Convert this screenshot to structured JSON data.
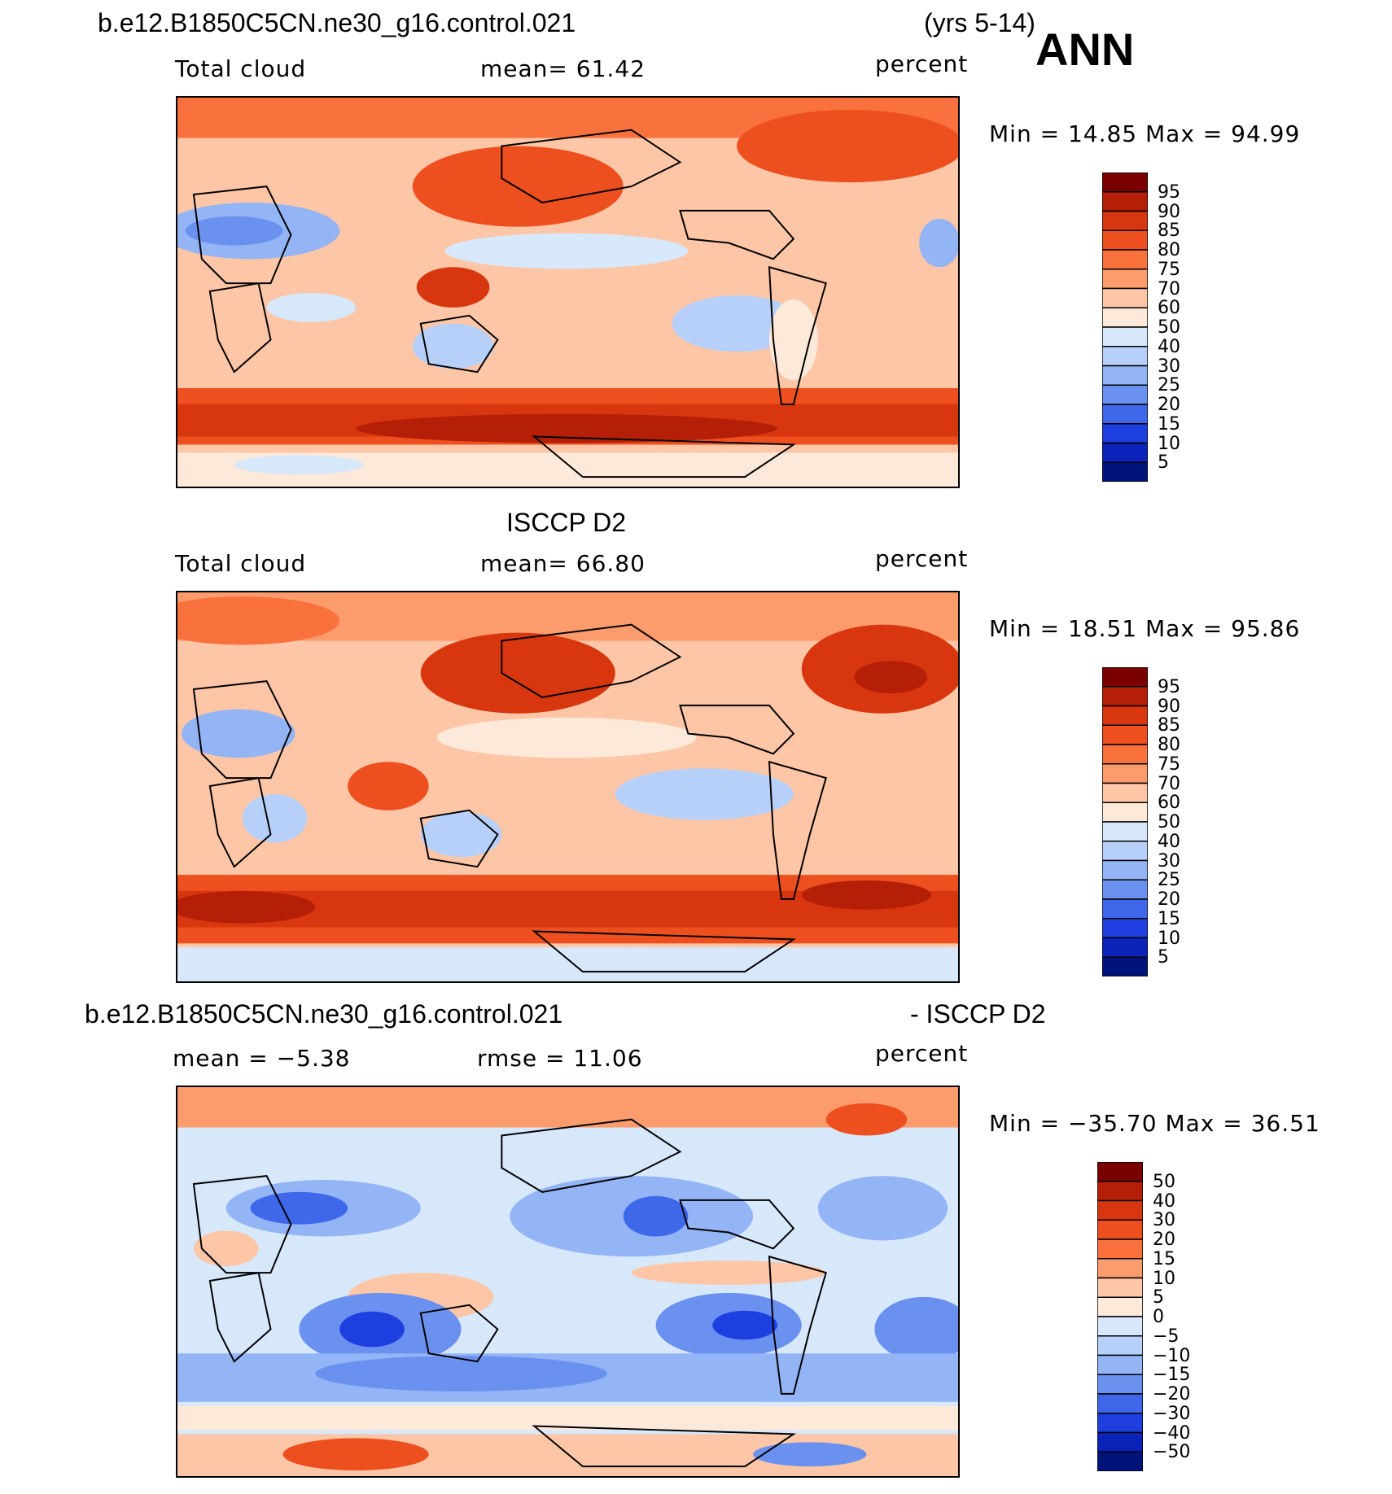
{
  "header": {
    "case_name": "b.e12.B1850C5CN.ne30_g16.control.021",
    "years": "(yrs 5-14)",
    "season": "ANN"
  },
  "panels": [
    {
      "title": "",
      "left_label": "Total cloud",
      "center_label": "mean=   61.42",
      "units": "percent",
      "minmax": "Min =   14.85  Max =   94.99",
      "colorbar": {
        "levels": [
          "95",
          "90",
          "85",
          "80",
          "75",
          "70",
          "60",
          "50",
          "40",
          "30",
          "25",
          "20",
          "15",
          "10",
          "5"
        ],
        "colors": [
          "#7a0000",
          "#b51f07",
          "#d8360f",
          "#ee4f1e",
          "#f9723d",
          "#fc9b6c",
          "#fdc6a6",
          "#fde9d9",
          "#d7e8fb",
          "#b7d0f9",
          "#93b4f5",
          "#6b91f0",
          "#3f67ea",
          "#1d3fe0",
          "#0b23b8",
          "#00137a"
        ]
      }
    },
    {
      "title": "ISCCP D2",
      "left_label": "Total cloud",
      "center_label": "mean=   66.80",
      "units": "percent",
      "minmax": "Min =   18.51  Max =   95.86",
      "colorbar": {
        "levels": [
          "95",
          "90",
          "85",
          "80",
          "75",
          "70",
          "60",
          "50",
          "40",
          "30",
          "25",
          "20",
          "15",
          "10",
          "5"
        ],
        "colors": [
          "#7a0000",
          "#b51f07",
          "#d8360f",
          "#ee4f1e",
          "#f9723d",
          "#fc9b6c",
          "#fdc6a6",
          "#fde9d9",
          "#d7e8fb",
          "#b7d0f9",
          "#93b4f5",
          "#6b91f0",
          "#3f67ea",
          "#1d3fe0",
          "#0b23b8",
          "#00137a"
        ]
      }
    },
    {
      "title_left": "b.e12.B1850C5CN.ne30_g16.control.021",
      "title_right": "- ISCCP D2",
      "left_label": "mean =   −5.38",
      "center_label": "rmse =    11.06",
      "units": "percent",
      "minmax": "Min = −35.70  Max =   36.51",
      "colorbar": {
        "levels": [
          "50",
          "40",
          "30",
          "20",
          "15",
          "10",
          "5",
          "0",
          "−5",
          "−10",
          "−15",
          "−20",
          "−30",
          "−40",
          "−50"
        ],
        "colors": [
          "#7a0000",
          "#b51f07",
          "#d8360f",
          "#ee4f1e",
          "#f9723d",
          "#fc9b6c",
          "#fdc6a6",
          "#fde9d9",
          "#d7e8fb",
          "#b7d0f9",
          "#93b4f5",
          "#6b91f0",
          "#3f67ea",
          "#1d3fe0",
          "#0b23b8",
          "#00137a"
        ]
      }
    }
  ]
}
